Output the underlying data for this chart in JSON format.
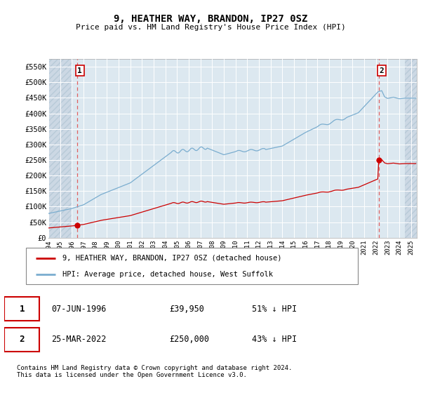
{
  "title": "9, HEATHER WAY, BRANDON, IP27 0SZ",
  "subtitle": "Price paid vs. HM Land Registry's House Price Index (HPI)",
  "ylim": [
    0,
    575000
  ],
  "xlim_start": 1994.0,
  "xlim_end": 2025.5,
  "yticks": [
    0,
    50000,
    100000,
    150000,
    200000,
    250000,
    300000,
    350000,
    400000,
    450000,
    500000,
    550000
  ],
  "ytick_labels": [
    "£0",
    "£50K",
    "£100K",
    "£150K",
    "£200K",
    "£250K",
    "£300K",
    "£350K",
    "£400K",
    "£450K",
    "£500K",
    "£550K"
  ],
  "xticks": [
    1994,
    1995,
    1996,
    1997,
    1998,
    1999,
    2000,
    2001,
    2002,
    2003,
    2004,
    2005,
    2006,
    2007,
    2008,
    2009,
    2010,
    2011,
    2012,
    2013,
    2014,
    2015,
    2016,
    2017,
    2018,
    2019,
    2020,
    2021,
    2022,
    2023,
    2024,
    2025
  ],
  "sale1_x": 1996.44,
  "sale1_y": 39950,
  "sale1_label": "1",
  "sale1_date": "07-JUN-1996",
  "sale1_price": "£39,950",
  "sale1_hpi": "51% ↓ HPI",
  "sale2_x": 2022.23,
  "sale2_y": 250000,
  "sale2_label": "2",
  "sale2_date": "25-MAR-2022",
  "sale2_price": "£250,000",
  "sale2_hpi": "43% ↓ HPI",
  "red_line_color": "#cc0000",
  "blue_line_color": "#7aadcf",
  "dashed_line_color": "#e06060",
  "marker_color": "#cc0000",
  "label_box_color": "#cc0000",
  "background_color": "#ffffff",
  "plot_bg_color": "#dce8f0",
  "hatch_bg_color": "#ccd8e4",
  "grid_color": "#ffffff",
  "legend_line1": "9, HEATHER WAY, BRANDON, IP27 0SZ (detached house)",
  "legend_line2": "HPI: Average price, detached house, West Suffolk",
  "footer": "Contains HM Land Registry data © Crown copyright and database right 2024.\nThis data is licensed under the Open Government Licence v3.0."
}
